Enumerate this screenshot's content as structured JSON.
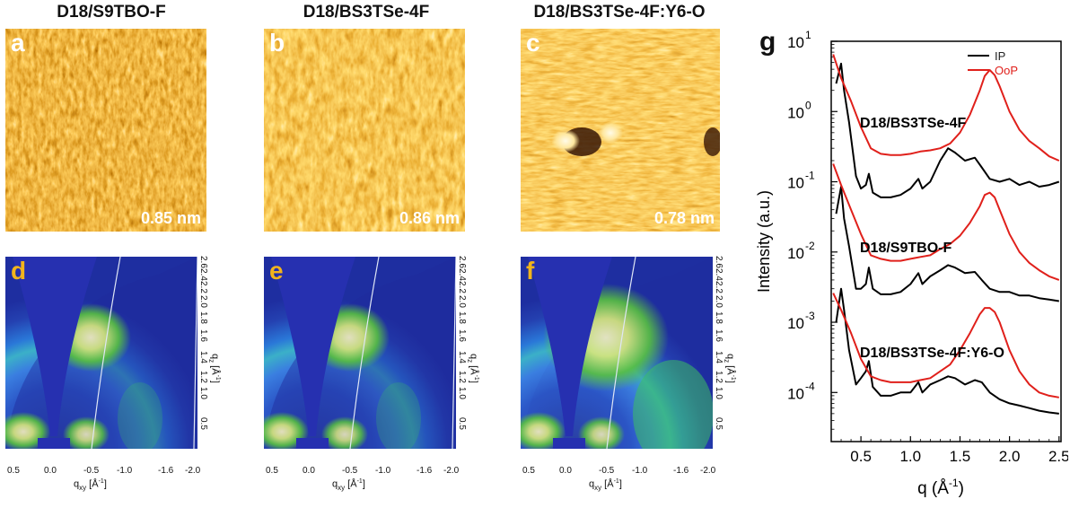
{
  "columns": [
    {
      "title": "D18/S9TBO-F",
      "afm_letter": "a",
      "roughness": "0.85 nm",
      "giwaxs_letter": "d"
    },
    {
      "title": "D18/BS3TSe-4F",
      "afm_letter": "b",
      "roughness": "0.86 nm",
      "giwaxs_letter": "e"
    },
    {
      "title": "D18/BS3TSe-4F:Y6-O",
      "afm_letter": "c",
      "roughness": "0.78 nm",
      "giwaxs_letter": "f"
    }
  ],
  "giwaxs": {
    "qxy_ticks": [
      "0.5",
      "0.0",
      "-0.5",
      "-1.0",
      "-1.6",
      "-2.0"
    ],
    "qz_ticks": [
      "2.6",
      "2.4",
      "2.2",
      "2.0",
      "1.8",
      "1.6",
      "1.4",
      "1.2",
      "1.0",
      "0.5"
    ],
    "xlabel": "q",
    "xlabel_sub": "xy",
    "xlabel_unit": "[Å",
    "ylabel": "q",
    "ylabel_sub": "z",
    "ylabel_unit": "[Å"
  },
  "chart_data": {
    "type": "line",
    "panel_letter": "g",
    "xlabel": "q (Å",
    "ylabel": "Intensity (a.u.)",
    "x_ticks": [
      "0.5",
      "1.0",
      "1.5",
      "2.0",
      "2.5"
    ],
    "y_ticks": [
      "10",
      "10",
      "10",
      "10",
      "10",
      "10"
    ],
    "y_exponents": [
      "1",
      "0",
      "-1",
      "-2",
      "-3",
      "-4"
    ],
    "xlim": [
      0.2,
      2.52
    ],
    "ylim": [
      2e-05,
      10
    ],
    "y_scale": "log",
    "legend": {
      "position": "top-right",
      "entries": [
        {
          "name": "IP",
          "color": "#000000"
        },
        {
          "name": "OoP",
          "color": "#e0201b"
        }
      ]
    },
    "annotations": [
      "D18/BS3TSe-4F",
      "D18/S9TBO-F",
      "D18/BS3TSe-4F:Y6-O"
    ],
    "series": [
      {
        "name": "IP",
        "sample": "D18/BS3TSe-4F",
        "color": "#000000",
        "x": [
          0.25,
          0.3,
          0.33,
          0.38,
          0.45,
          0.5,
          0.55,
          0.58,
          0.62,
          0.7,
          0.8,
          0.9,
          1.0,
          1.08,
          1.12,
          1.2,
          1.3,
          1.38,
          1.45,
          1.55,
          1.65,
          1.72,
          1.8,
          1.9,
          2.0,
          2.1,
          2.2,
          2.3,
          2.4,
          2.5
        ],
        "y": [
          2.5,
          4.8,
          2.0,
          0.7,
          0.12,
          0.08,
          0.09,
          0.13,
          0.07,
          0.06,
          0.06,
          0.065,
          0.08,
          0.11,
          0.08,
          0.1,
          0.2,
          0.3,
          0.26,
          0.2,
          0.22,
          0.16,
          0.11,
          0.1,
          0.11,
          0.09,
          0.1,
          0.085,
          0.09,
          0.1
        ]
      },
      {
        "name": "OoP",
        "sample": "D18/BS3TSe-4F",
        "color": "#e0201b",
        "x": [
          0.22,
          0.3,
          0.4,
          0.5,
          0.6,
          0.7,
          0.8,
          0.9,
          1.0,
          1.1,
          1.2,
          1.3,
          1.4,
          1.5,
          1.6,
          1.7,
          1.75,
          1.8,
          1.85,
          1.9,
          2.0,
          2.1,
          2.2,
          2.3,
          2.4,
          2.5
        ],
        "y": [
          6.5,
          3.0,
          1.4,
          0.6,
          0.3,
          0.25,
          0.24,
          0.24,
          0.25,
          0.27,
          0.28,
          0.3,
          0.35,
          0.5,
          0.9,
          2.0,
          3.2,
          3.9,
          3.3,
          2.3,
          1.0,
          0.55,
          0.38,
          0.3,
          0.23,
          0.2
        ]
      },
      {
        "name": "IP",
        "sample": "D18/S9TBO-F",
        "color": "#000000",
        "x": [
          0.25,
          0.3,
          0.33,
          0.38,
          0.45,
          0.5,
          0.55,
          0.58,
          0.62,
          0.7,
          0.8,
          0.9,
          1.0,
          1.08,
          1.12,
          1.2,
          1.3,
          1.38,
          1.45,
          1.55,
          1.65,
          1.72,
          1.8,
          1.9,
          2.0,
          2.1,
          2.2,
          2.3,
          2.4,
          2.5
        ],
        "y": [
          0.035,
          0.085,
          0.03,
          0.012,
          0.003,
          0.003,
          0.0035,
          0.006,
          0.003,
          0.0025,
          0.0025,
          0.0027,
          0.0035,
          0.005,
          0.0035,
          0.0045,
          0.0055,
          0.0065,
          0.006,
          0.005,
          0.0052,
          0.004,
          0.003,
          0.0027,
          0.0027,
          0.0024,
          0.0024,
          0.0022,
          0.0021,
          0.002
        ]
      },
      {
        "name": "OoP",
        "sample": "D18/S9TBO-F",
        "color": "#e0201b",
        "x": [
          0.22,
          0.3,
          0.4,
          0.5,
          0.6,
          0.7,
          0.8,
          0.9,
          1.0,
          1.1,
          1.2,
          1.3,
          1.4,
          1.5,
          1.6,
          1.7,
          1.75,
          1.8,
          1.85,
          1.9,
          2.0,
          2.1,
          2.2,
          2.3,
          2.4,
          2.5
        ],
        "y": [
          0.18,
          0.09,
          0.04,
          0.018,
          0.009,
          0.008,
          0.0075,
          0.0075,
          0.008,
          0.0085,
          0.009,
          0.011,
          0.013,
          0.017,
          0.026,
          0.045,
          0.065,
          0.07,
          0.06,
          0.04,
          0.018,
          0.01,
          0.007,
          0.0055,
          0.0045,
          0.004
        ]
      },
      {
        "name": "IP",
        "sample": "D18/BS3TSe-4F:Y6-O",
        "color": "#000000",
        "x": [
          0.25,
          0.3,
          0.33,
          0.38,
          0.45,
          0.5,
          0.55,
          0.58,
          0.62,
          0.7,
          0.8,
          0.9,
          1.0,
          1.08,
          1.12,
          1.2,
          1.3,
          1.38,
          1.45,
          1.55,
          1.65,
          1.72,
          1.8,
          1.9,
          2.0,
          2.1,
          2.2,
          2.3,
          2.4,
          2.5
        ],
        "y": [
          0.001,
          0.003,
          0.0015,
          0.0004,
          0.00013,
          0.00016,
          0.0002,
          0.00028,
          0.00012,
          9e-05,
          9e-05,
          0.0001,
          0.0001,
          0.00014,
          0.0001,
          0.00013,
          0.00015,
          0.00017,
          0.00016,
          0.00013,
          0.00015,
          0.00014,
          0.0001,
          8e-05,
          7e-05,
          6.5e-05,
          6e-05,
          5.5e-05,
          5.2e-05,
          5e-05
        ]
      },
      {
        "name": "OoP",
        "sample": "D18/BS3TSe-4F:Y6-O",
        "color": "#e0201b",
        "x": [
          0.22,
          0.3,
          0.4,
          0.5,
          0.6,
          0.7,
          0.8,
          0.9,
          1.0,
          1.1,
          1.2,
          1.3,
          1.4,
          1.5,
          1.6,
          1.7,
          1.75,
          1.8,
          1.85,
          1.9,
          2.0,
          2.1,
          2.2,
          2.3,
          2.4,
          2.5
        ],
        "y": [
          0.0026,
          0.0015,
          0.0007,
          0.0003,
          0.00017,
          0.00015,
          0.00014,
          0.00014,
          0.00014,
          0.00015,
          0.00016,
          0.0002,
          0.00025,
          0.0004,
          0.0007,
          0.0013,
          0.0016,
          0.0016,
          0.0014,
          0.001,
          0.0004,
          0.0002,
          0.00013,
          0.0001,
          9e-05,
          8.5e-05
        ]
      }
    ]
  }
}
